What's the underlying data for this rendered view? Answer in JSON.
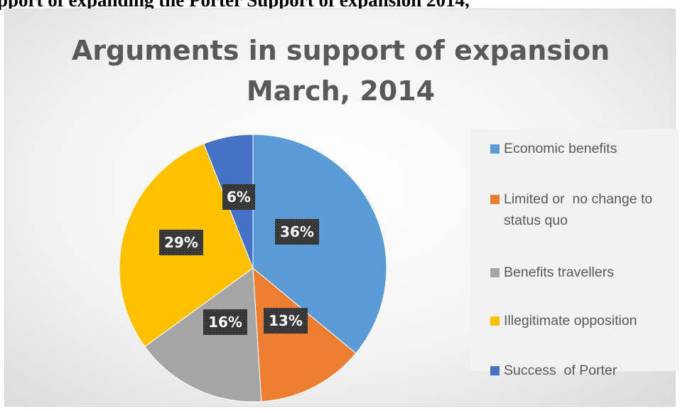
{
  "caption_fragment": "pport of expanding the Porter Support of expansion 2014,",
  "chart_data": {
    "type": "pie",
    "title": [
      "Arguments in support of expansion",
      "March, 2014"
    ],
    "categories": [
      "Economic benefits",
      "Limited or  no change to status quo",
      "Benefits travellers",
      "Illegitimate opposition",
      "Success  of Porter"
    ],
    "values": [
      36,
      13,
      16,
      29,
      6
    ],
    "data_labels": [
      "36%",
      "13%",
      "16%",
      "29%",
      "6%"
    ],
    "colors": [
      "#5b9bd5",
      "#ed7d31",
      "#a5a5a5",
      "#ffc000",
      "#4472c4"
    ],
    "legend": "right"
  }
}
